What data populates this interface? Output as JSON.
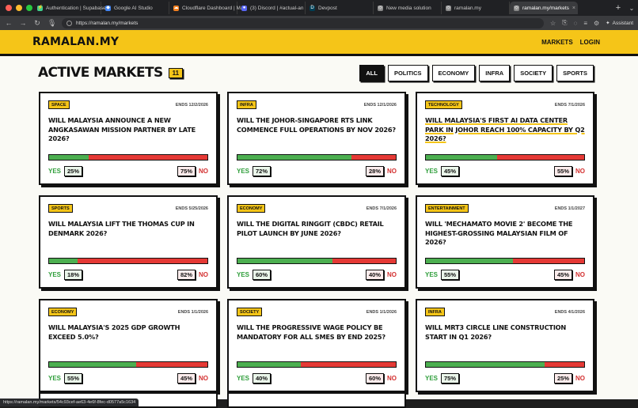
{
  "browser": {
    "tabs": [
      {
        "label": "Authentication | Supabase",
        "color": "#3ecf8e",
        "glyph": "⚡"
      },
      {
        "label": "Google AI Studio",
        "color": "#4285f4",
        "glyph": "◆"
      },
      {
        "label": "Cloudflare Dashboard | Ma",
        "color": "#f38020",
        "glyph": "☁"
      },
      {
        "label": "(3) Discord | #actual-an",
        "color": "#5865f2",
        "glyph": "●"
      },
      {
        "label": "Devpost",
        "color": "#003e54",
        "glyph": "D"
      },
      {
        "label": "New media solution",
        "color": "#888888",
        "glyph": "◎"
      },
      {
        "label": "ramalan.my",
        "color": "#888888",
        "glyph": "◎"
      },
      {
        "label": "ramalan.my/markets",
        "color": "#888888",
        "glyph": "◎"
      }
    ],
    "url": "https://ramalan.my/markets",
    "assistant_label": "Assistant",
    "status_url": "https://ramalan.my/markets/54c93cef-ae63-4e6f-8fec-d0577a5c1634"
  },
  "header": {
    "logo": "RAMALAN.MY",
    "nav": [
      "MARKETS",
      "LOGIN"
    ]
  },
  "page": {
    "title": "ACTIVE MARKETS",
    "count": "11",
    "filters": [
      "ALL",
      "POLITICS",
      "ECONOMY",
      "INFRA",
      "SOCIETY",
      "SPORTS"
    ],
    "active_filter": "ALL"
  },
  "labels": {
    "yes": "YES",
    "no": "NO"
  },
  "markets": [
    {
      "tag": "SPACE",
      "ends": "ENDS 12/2/2026",
      "question": "WILL MALAYSIA ANNOUNCE A NEW ANGKASAWAN MISSION PARTNER BY LATE 2026?",
      "yes": 25,
      "no": 75
    },
    {
      "tag": "INFRA",
      "ends": "ENDS 12/1/2026",
      "question": "WILL THE JOHOR-SINGAPORE RTS LINK COMMENCE FULL OPERATIONS BY NOV 2026?",
      "yes": 72,
      "no": 28
    },
    {
      "tag": "TECHNOLOGY",
      "ends": "ENDS 7/1/2026",
      "question": "WILL MALAYSIA'S FIRST AI DATA CENTER PARK IN JOHOR REACH 100% CAPACITY BY Q2 2026?",
      "yes": 45,
      "no": 55,
      "highlight": true
    },
    {
      "tag": "SPORTS",
      "ends": "ENDS 5/25/2026",
      "question": "WILL MALAYSIA LIFT THE THOMAS CUP IN DENMARK 2026?",
      "yes": 18,
      "no": 82
    },
    {
      "tag": "ECONOMY",
      "ends": "ENDS 7/1/2026",
      "question": "WILL THE DIGITAL RINGGIT (CBDC) RETAIL PILOT LAUNCH BY JUNE 2026?",
      "yes": 60,
      "no": 40
    },
    {
      "tag": "ENTERTAINMENT",
      "ends": "ENDS 1/1/2027",
      "question": "WILL 'MECHAMATO MOVIE 2' BECOME THE HIGHEST-GROSSING MALAYSIAN FILM OF 2026?",
      "yes": 55,
      "no": 45
    },
    {
      "tag": "ECONOMY",
      "ends": "ENDS 1/1/2026",
      "question": "WILL MALAYSIA'S 2025 GDP GROWTH EXCEED 5.0%?",
      "yes": 55,
      "no": 45
    },
    {
      "tag": "SOCIETY",
      "ends": "ENDS 1/1/2026",
      "question": "WILL THE PROGRESSIVE WAGE POLICY BE MANDATORY FOR ALL SMES BY END 2025?",
      "yes": 40,
      "no": 60
    },
    {
      "tag": "INFRA",
      "ends": "ENDS 4/1/2026",
      "question": "WILL MRT3 CIRCLE LINE CONSTRUCTION START IN Q1 2026?",
      "yes": 75,
      "no": 25
    }
  ],
  "colors": {
    "brand_yellow": "#f5c518",
    "yes_green": "#4caf50",
    "no_red": "#e53935",
    "ink": "#111111"
  }
}
